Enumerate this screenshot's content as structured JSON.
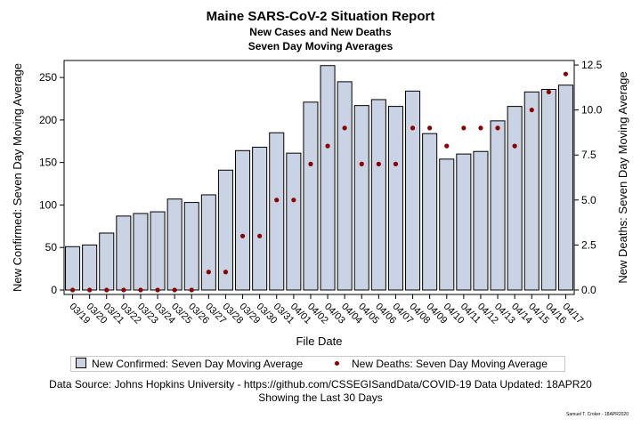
{
  "header": {
    "title": "Maine SARS-CoV-2 Situation Report",
    "subtitle1": "New Cases and New Deaths",
    "subtitle2": "Seven Day Moving Averages"
  },
  "legend": {
    "cases": "New Confirmed: Seven Day Moving Average",
    "deaths": "New Deaths: Seven Day Moving Average"
  },
  "footer": {
    "source": "Data Source: Johns Hopkins University - https://github.com/CSSEGISandData/COVID-19 Data Updated: 18APR20",
    "window": "Showing the Last 30 Days",
    "credit": "Samuel T. Croker - 18APR2020"
  },
  "colors": {
    "bar_fill": "#c9d3e3",
    "bar_stroke": "#000000",
    "dot": "#8b0000"
  },
  "chart_data": {
    "type": "bar",
    "xlabel": "File Date",
    "categories": [
      "03/19",
      "03/20",
      "03/21",
      "03/22",
      "03/23",
      "03/24",
      "03/25",
      "03/26",
      "03/27",
      "03/28",
      "03/29",
      "03/30",
      "03/31",
      "04/01",
      "04/02",
      "04/03",
      "04/04",
      "04/05",
      "04/06",
      "04/07",
      "04/08",
      "04/09",
      "04/10",
      "04/11",
      "04/12",
      "04/13",
      "04/14",
      "04/15",
      "04/16",
      "04/17"
    ],
    "series": [
      {
        "name": "New Confirmed: Seven Day Moving Average",
        "axis": "left",
        "mark": "bar",
        "values": [
          51,
          53,
          67,
          87,
          90,
          92,
          107,
          103,
          112,
          141,
          164,
          168,
          185,
          161,
          221,
          264,
          245,
          217,
          224,
          216,
          234,
          184,
          154,
          160,
          163,
          199,
          216,
          233,
          236,
          241
        ]
      },
      {
        "name": "New Deaths: Seven Day Moving Average",
        "axis": "right",
        "mark": "dot",
        "values": [
          0,
          0,
          0,
          0,
          0,
          0,
          0,
          0,
          1,
          1,
          3,
          3,
          5,
          5,
          7,
          8,
          9,
          7,
          7,
          7,
          9,
          9,
          8,
          9,
          9,
          9,
          8,
          10,
          11,
          12
        ]
      }
    ],
    "ylabel": "New Confirmed: Seven Day Moving Average",
    "ylim": [
      0,
      270
    ],
    "yticks": [
      "0",
      "50",
      "100",
      "150",
      "200",
      "250"
    ],
    "y2label": "New Deaths: Seven Day Moving Average",
    "y2lim": [
      0,
      12.75
    ],
    "y2ticks": [
      "0.0",
      "2.5",
      "5.0",
      "7.5",
      "10.0",
      "12.5"
    ],
    "grid": false,
    "legend_position": "bottom"
  }
}
